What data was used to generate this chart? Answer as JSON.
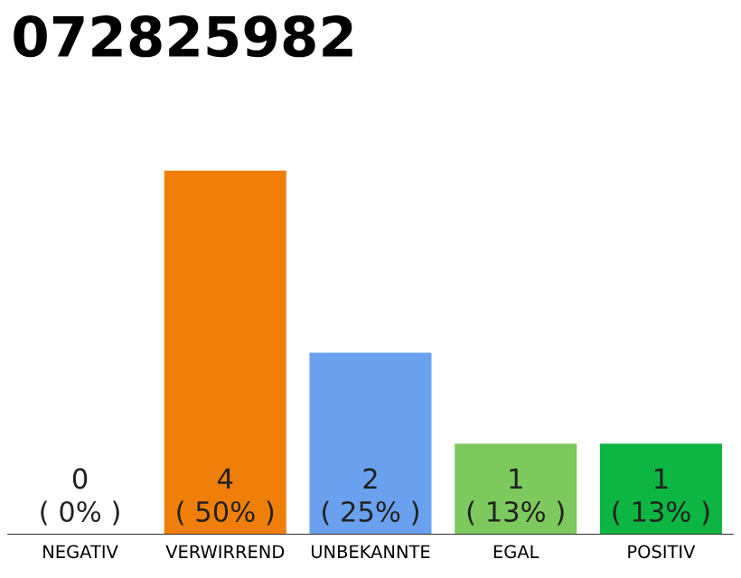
{
  "chart_data": {
    "type": "bar",
    "title": "072825982",
    "categories": [
      "NEGATIV",
      "VERWIRREND",
      "UNBEKANNTE",
      "EGAL",
      "POSITIV"
    ],
    "values": [
      0,
      4,
      2,
      1,
      1
    ],
    "colors": [
      "#cccccc",
      "#f07f0a",
      "#6aa1ef",
      "#7dc95e",
      "#0db543"
    ],
    "ylim": [
      0,
      4
    ],
    "grid": false,
    "value_labels": [
      "0\n( 0% )",
      "4\n( 50% )",
      "2\n( 25% )",
      "1\n( 13% )",
      "1\n( 13% )"
    ]
  }
}
